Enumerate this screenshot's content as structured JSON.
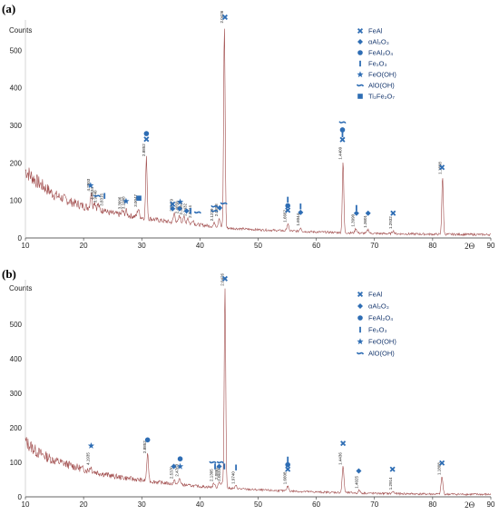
{
  "chart_data": [
    {
      "panel_label": "(a)",
      "type": "line",
      "ylabel": "Counts",
      "x_unit": "2Θ",
      "xlim": [
        10,
        90
      ],
      "ylim": [
        0,
        600
      ],
      "x_ticks": [
        10,
        20,
        30,
        40,
        50,
        60,
        70,
        80,
        90
      ],
      "y_ticks": [
        0,
        100,
        200,
        300,
        400,
        500
      ],
      "colors": {
        "trace": "#a04b4b",
        "marker": "#2e6db4"
      },
      "legend": [
        {
          "icon": "x-icon",
          "label": "FeAl"
        },
        {
          "icon": "diamond-icon",
          "label": "αAl₂O₃"
        },
        {
          "icon": "circle-icon",
          "label": "FeAl₂O₄"
        },
        {
          "icon": "bar-icon",
          "label": "Fe₂O₃"
        },
        {
          "icon": "star-icon",
          "label": "FeO(OH)"
        },
        {
          "icon": "dash-icon",
          "label": "AlO(OH)"
        },
        {
          "icon": "square-icon",
          "label": "Ti₂Fe₂O₇"
        }
      ],
      "background": {
        "x": [
          10,
          12,
          15,
          18,
          20,
          25,
          30,
          35,
          40,
          45,
          50,
          60,
          70,
          80,
          90
        ],
        "y": [
          180,
          150,
          115,
          95,
          85,
          65,
          55,
          42,
          35,
          26,
          22,
          16,
          12,
          10,
          9
        ]
      },
      "peaks": [
        {
          "x": 21.3,
          "h": 40,
          "label": "4.2003"
        },
        {
          "x": 21.9,
          "h": 20,
          "label": "4.0534"
        },
        {
          "x": 22.5,
          "h": 14,
          "label": "3.9440"
        },
        {
          "x": 23.6,
          "h": 10,
          "label": "3.8315"
        },
        {
          "x": 26.7,
          "h": 10,
          "label": "3.3096"
        },
        {
          "x": 27.3,
          "h": 12,
          "label": "3.1998"
        },
        {
          "x": 29.4,
          "h": 22,
          "label": "3.0047"
        },
        {
          "x": 30.8,
          "h": 160,
          "label": "2.8852"
        },
        {
          "x": 35.6,
          "h": 25,
          "label": "2.5479"
        },
        {
          "x": 36.5,
          "h": 20,
          "label": "2.4650"
        },
        {
          "x": 37.2,
          "h": 18,
          "label": "2.3963"
        },
        {
          "x": 37.9,
          "h": 16,
          "label": "2.3432"
        },
        {
          "x": 38.8,
          "h": 12,
          "label": "2.3214"
        },
        {
          "x": 42.5,
          "h": 10,
          "label": "2.1229"
        },
        {
          "x": 43.3,
          "h": 24,
          "label": "2.0898"
        },
        {
          "x": 44.2,
          "h": 540,
          "label": "2.0426"
        },
        {
          "x": 55.1,
          "h": 18,
          "label": "1.6662"
        },
        {
          "x": 57.3,
          "h": 10,
          "label": "1.6044"
        },
        {
          "x": 64.6,
          "h": 190,
          "label": "1.4409"
        },
        {
          "x": 66.8,
          "h": 12,
          "label": "1.3990"
        },
        {
          "x": 68.9,
          "h": 10,
          "label": "1.3601"
        },
        {
          "x": 73.2,
          "h": 8,
          "label": "1.2932"
        },
        {
          "x": 81.7,
          "h": 155,
          "label": "1.1808"
        }
      ],
      "markers": [
        {
          "x": 21.2,
          "y": 140,
          "icon": "star-icon"
        },
        {
          "x": 22.3,
          "y": 112,
          "icon": "dash-icon"
        },
        {
          "x": 23.6,
          "y": 112,
          "icon": "bar-icon"
        },
        {
          "x": 27.3,
          "y": 98,
          "icon": "star-icon"
        },
        {
          "x": 29.5,
          "y": 106,
          "icon": "square-icon"
        },
        {
          "x": 30.8,
          "y": 278,
          "icon": "circle-icon"
        },
        {
          "x": 30.8,
          "y": 263,
          "icon": "x-icon"
        },
        {
          "x": 35.3,
          "y": 90,
          "icon": "x-icon"
        },
        {
          "x": 35.3,
          "y": 78,
          "icon": "diamond-icon"
        },
        {
          "x": 36.6,
          "y": 96,
          "icon": "star-icon"
        },
        {
          "x": 36.5,
          "y": 78,
          "icon": "diamond-icon"
        },
        {
          "x": 37.7,
          "y": 72,
          "icon": "diamond-icon"
        },
        {
          "x": 38.4,
          "y": 72,
          "icon": "bar-icon"
        },
        {
          "x": 39.6,
          "y": 68,
          "icon": "dash-icon"
        },
        {
          "x": 42.5,
          "y": 84,
          "icon": "dash-icon"
        },
        {
          "x": 42.5,
          "y": 72,
          "icon": "dash-icon"
        },
        {
          "x": 43.4,
          "y": 80,
          "icon": "diamond-icon"
        },
        {
          "x": 44.1,
          "y": 92,
          "icon": "dash-icon"
        },
        {
          "x": 44.3,
          "y": 588,
          "icon": "x-icon"
        },
        {
          "x": 55.1,
          "y": 102,
          "icon": "bar-icon"
        },
        {
          "x": 55.1,
          "y": 86,
          "icon": "circle-icon"
        },
        {
          "x": 55.1,
          "y": 74,
          "icon": "x-icon"
        },
        {
          "x": 57.3,
          "y": 84,
          "icon": "bar-icon"
        },
        {
          "x": 57.3,
          "y": 68,
          "icon": "diamond-icon"
        },
        {
          "x": 64.5,
          "y": 308,
          "icon": "dash-icon"
        },
        {
          "x": 64.5,
          "y": 288,
          "icon": "circle-icon"
        },
        {
          "x": 64.5,
          "y": 276,
          "icon": "bar-icon"
        },
        {
          "x": 64.5,
          "y": 262,
          "icon": "x-icon"
        },
        {
          "x": 66.9,
          "y": 80,
          "icon": "bar-icon"
        },
        {
          "x": 66.9,
          "y": 66,
          "icon": "diamond-icon"
        },
        {
          "x": 68.9,
          "y": 66,
          "icon": "diamond-icon"
        },
        {
          "x": 73.2,
          "y": 66,
          "icon": "x-icon"
        },
        {
          "x": 81.6,
          "y": 188,
          "icon": "x-icon"
        }
      ]
    },
    {
      "panel_label": "(b)",
      "type": "line",
      "ylabel": "Counts",
      "x_unit": "2Θ",
      "xlim": [
        10,
        90
      ],
      "ylim": [
        0,
        650
      ],
      "x_ticks": [
        10,
        20,
        30,
        40,
        50,
        60,
        70,
        80,
        90
      ],
      "y_ticks": [
        0,
        100,
        200,
        300,
        400,
        500
      ],
      "colors": {
        "trace": "#a04b4b",
        "marker": "#2e6db4"
      },
      "legend": [
        {
          "icon": "x-icon",
          "label": "FeAl"
        },
        {
          "icon": "diamond-icon",
          "label": "αAl₂O₃"
        },
        {
          "icon": "circle-icon",
          "label": "FeAl₂O₄"
        },
        {
          "icon": "bar-icon",
          "label": "Fe₂O₃"
        },
        {
          "icon": "star-icon",
          "label": "FeO(OH)"
        },
        {
          "icon": "dash-icon",
          "label": "AlO(OH)"
        }
      ],
      "background": {
        "x": [
          10,
          12,
          15,
          18,
          20,
          25,
          30,
          35,
          40,
          45,
          50,
          60,
          70,
          80,
          90
        ],
        "y": [
          160,
          130,
          105,
          90,
          80,
          60,
          48,
          38,
          30,
          25,
          20,
          14,
          10,
          8,
          7
        ]
      },
      "peaks": [
        {
          "x": 21.2,
          "h": 12,
          "label": "4.1935"
        },
        {
          "x": 31.0,
          "h": 75,
          "label": "2.8852"
        },
        {
          "x": 35.6,
          "h": 10,
          "label": "2.5370"
        },
        {
          "x": 36.5,
          "h": 18,
          "label": "2.4763"
        },
        {
          "x": 42.4,
          "h": 12,
          "label": "2.1305"
        },
        {
          "x": 43.3,
          "h": 18,
          "label": "2.0864"
        },
        {
          "x": 43.8,
          "h": 14,
          "label": "2.0633"
        },
        {
          "x": 44.3,
          "h": 580,
          "label": "2.0426"
        },
        {
          "x": 46.2,
          "h": 8,
          "label": "1.9740"
        },
        {
          "x": 55.1,
          "h": 14,
          "label": "1.6608"
        },
        {
          "x": 64.6,
          "h": 75,
          "label": "1.4436"
        },
        {
          "x": 67.4,
          "h": 8,
          "label": "1.4025"
        },
        {
          "x": 73.2,
          "h": 6,
          "label": "1.2914"
        },
        {
          "x": 81.6,
          "h": 50,
          "label": "1.1808"
        }
      ],
      "markers": [
        {
          "x": 21.3,
          "y": 148,
          "icon": "star-icon"
        },
        {
          "x": 31.0,
          "y": 165,
          "icon": "circle-icon"
        },
        {
          "x": 35.5,
          "y": 88,
          "icon": "diamond-icon"
        },
        {
          "x": 36.6,
          "y": 110,
          "icon": "circle-icon"
        },
        {
          "x": 36.6,
          "y": 88,
          "icon": "star-icon"
        },
        {
          "x": 42.2,
          "y": 100,
          "icon": "dash-icon"
        },
        {
          "x": 42.6,
          "y": 88,
          "icon": "bar-icon"
        },
        {
          "x": 43.3,
          "y": 88,
          "icon": "diamond-icon"
        },
        {
          "x": 43.5,
          "y": 100,
          "icon": "dash-icon"
        },
        {
          "x": 44.2,
          "y": 88,
          "icon": "bar-icon"
        },
        {
          "x": 44.3,
          "y": 632,
          "icon": "x-icon"
        },
        {
          "x": 46.2,
          "y": 85,
          "icon": "bar-icon"
        },
        {
          "x": 55.1,
          "y": 108,
          "icon": "bar-icon"
        },
        {
          "x": 55.1,
          "y": 93,
          "icon": "circle-icon"
        },
        {
          "x": 55.1,
          "y": 80,
          "icon": "x-icon"
        },
        {
          "x": 64.6,
          "y": 155,
          "icon": "x-icon"
        },
        {
          "x": 67.3,
          "y": 75,
          "icon": "diamond-icon"
        },
        {
          "x": 73.1,
          "y": 80,
          "icon": "x-icon"
        },
        {
          "x": 81.6,
          "y": 98,
          "icon": "x-icon"
        }
      ]
    }
  ]
}
